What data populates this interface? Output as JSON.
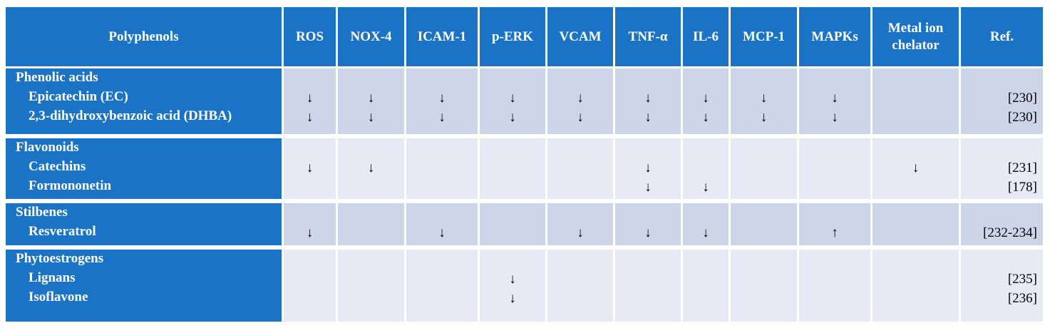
{
  "table": {
    "header": [
      "Polyphenols",
      "ROS",
      "NOX-4",
      "ICAM-1",
      "p-ERK",
      "VCAM",
      "TNF-α",
      "IL-6",
      "MCP-1",
      "MAPKs",
      "Metal ion chelator",
      "Ref."
    ],
    "groups": [
      {
        "name": "Phenolic acids",
        "rows": [
          {
            "name": "Epicatechin (EC)",
            "cells": [
              "↓",
              "↓",
              "↓",
              "↓",
              "↓",
              "↓",
              "↓",
              "↓",
              "↓",
              null,
              "[230]"
            ]
          },
          {
            "name": "2,3-dihydroxybenzoic acid (DHBA)",
            "cells": [
              "↓",
              "↓",
              "↓",
              "↓",
              "↓",
              "↓",
              "↓",
              "↓",
              "↓",
              null,
              "[230]"
            ]
          }
        ]
      },
      {
        "name": "Flavonoids",
        "rows": [
          {
            "name": "Catechins",
            "cells": [
              "↓",
              "↓",
              null,
              null,
              null,
              "↓",
              null,
              null,
              null,
              "↓",
              "[231]"
            ]
          },
          {
            "name": "Formononetin",
            "cells": [
              null,
              null,
              null,
              null,
              null,
              "↓",
              "↓",
              null,
              null,
              null,
              "[178]"
            ]
          }
        ]
      },
      {
        "name": "Stilbenes",
        "rows": [
          {
            "name": "Resveratrol",
            "cells": [
              "↓",
              null,
              "↓",
              null,
              "↓",
              "↓",
              "↓",
              null,
              "↑",
              null,
              "[232-234]"
            ]
          }
        ]
      },
      {
        "name": "Phytoestrogens",
        "rows": [
          {
            "name": "Lignans",
            "cells": [
              null,
              null,
              null,
              "↓",
              null,
              null,
              null,
              null,
              null,
              null,
              "[235]"
            ]
          },
          {
            "name": "Isoflavone",
            "cells": [
              null,
              null,
              null,
              "↓",
              null,
              null,
              null,
              null,
              null,
              null,
              "[236]"
            ]
          }
        ]
      }
    ]
  }
}
